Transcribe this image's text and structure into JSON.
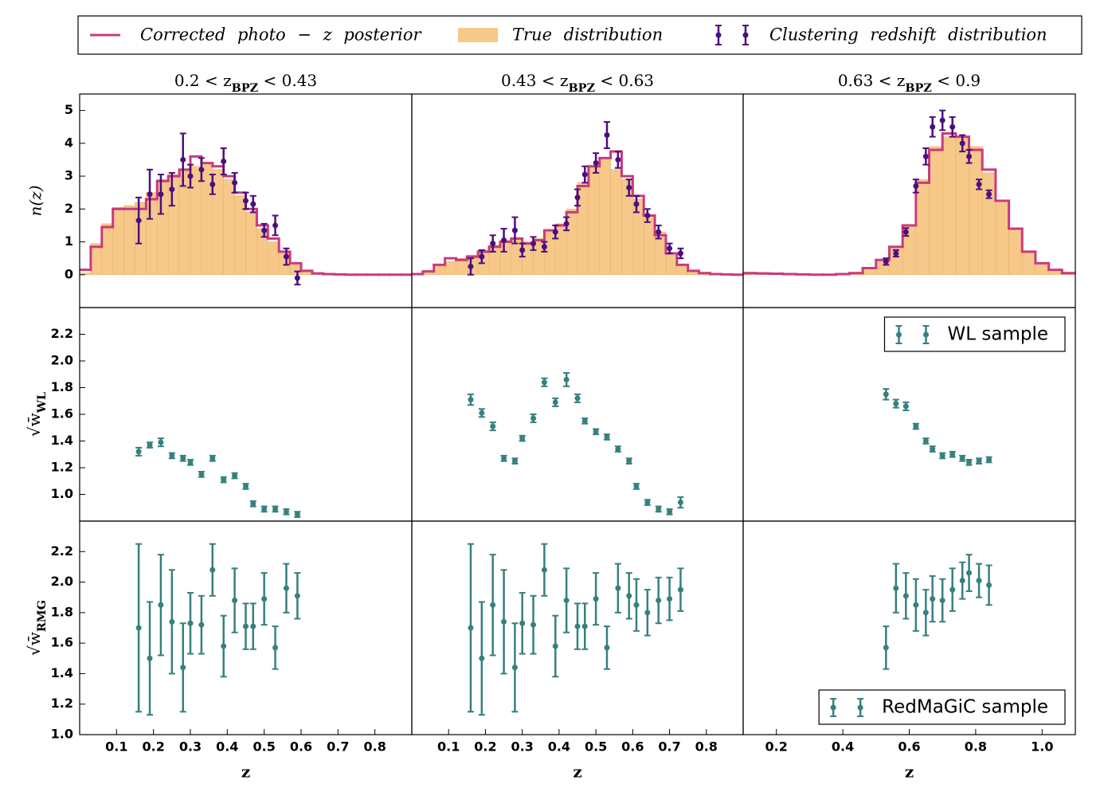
{
  "chart_data": [
    {
      "type": "nz",
      "title": {
        "main": "0.2 < z",
        "sub": "BPZ",
        "tail": " < 0.43"
      },
      "ylabel": "n(z)",
      "legend": "top",
      "xlim": [
        0,
        0.9
      ],
      "ylim": [
        -1,
        5.5
      ],
      "yticks": [
        0,
        1,
        2,
        3,
        4,
        5
      ],
      "series": [
        {
          "name": "Corrected photo − z posterior",
          "kind": "step",
          "color": "#c93a7c",
          "bins": [
            0,
            0.03,
            0.06,
            0.09,
            0.12,
            0.15,
            0.18,
            0.21,
            0.24,
            0.27,
            0.3,
            0.33,
            0.36,
            0.39,
            0.42,
            0.45,
            0.48,
            0.51,
            0.54,
            0.57,
            0.6,
            0.63,
            0.66,
            0.69,
            0.72,
            0.75,
            0.78,
            0.81,
            0.84,
            0.87,
            0.9
          ],
          "values": [
            0.15,
            0.85,
            1.45,
            2.0,
            2.0,
            2.0,
            2.3,
            2.85,
            3.0,
            3.2,
            3.6,
            3.4,
            3.3,
            3.0,
            2.5,
            2.0,
            1.5,
            1.1,
            0.7,
            0.35,
            0.12,
            0.04,
            0.02,
            0.01,
            0,
            0,
            0,
            0,
            0,
            0
          ]
        },
        {
          "name": "True distribution",
          "kind": "fill",
          "color": "#f6c88a",
          "bins": [
            0,
            0.03,
            0.06,
            0.09,
            0.12,
            0.15,
            0.18,
            0.21,
            0.24,
            0.27,
            0.3,
            0.33,
            0.36,
            0.39,
            0.42,
            0.45,
            0.48,
            0.51,
            0.54,
            0.57,
            0.6,
            0.63,
            0.66,
            0.69,
            0.72,
            0.75,
            0.78,
            0.81,
            0.84,
            0.87,
            0.9
          ],
          "values": [
            0.05,
            0.95,
            1.55,
            2.05,
            2.1,
            2.2,
            2.5,
            2.9,
            3.05,
            3.2,
            3.3,
            3.35,
            3.2,
            2.9,
            2.4,
            1.9,
            1.4,
            1.0,
            0.65,
            0.3,
            0.1,
            0.03,
            0.01,
            0,
            0,
            0,
            0,
            0,
            0,
            0
          ]
        },
        {
          "name": "Clustering redshift distribution",
          "kind": "errorbar",
          "color": "#4b0f7f",
          "x": [
            0.16,
            0.19,
            0.22,
            0.25,
            0.28,
            0.3,
            0.33,
            0.36,
            0.39,
            0.42,
            0.45,
            0.47,
            0.5,
            0.53,
            0.56,
            0.59
          ],
          "values": [
            1.65,
            2.45,
            2.45,
            2.6,
            3.5,
            3.0,
            3.2,
            2.75,
            3.45,
            2.8,
            2.25,
            2.15,
            1.35,
            1.5,
            0.55,
            -0.1
          ],
          "errors": [
            0.7,
            0.75,
            0.6,
            0.5,
            0.8,
            0.35,
            0.35,
            0.3,
            0.4,
            0.3,
            0.25,
            0.25,
            0.2,
            0.3,
            0.25,
            0.2
          ]
        }
      ]
    },
    {
      "type": "nz",
      "title": {
        "main": "0.43 < z",
        "sub": "BPZ",
        "tail": " < 0.63"
      },
      "xlim": [
        0,
        0.9
      ],
      "ylim": [
        -1,
        5.5
      ],
      "series": [
        {
          "kind": "step",
          "color": "#c93a7c",
          "bins": [
            0,
            0.03,
            0.06,
            0.09,
            0.12,
            0.15,
            0.18,
            0.21,
            0.24,
            0.27,
            0.3,
            0.33,
            0.36,
            0.39,
            0.42,
            0.45,
            0.48,
            0.51,
            0.54,
            0.57,
            0.6,
            0.63,
            0.66,
            0.69,
            0.72,
            0.75,
            0.78,
            0.81,
            0.84,
            0.87,
            0.9
          ],
          "values": [
            0.02,
            0.1,
            0.3,
            0.5,
            0.45,
            0.55,
            0.7,
            0.85,
            1.0,
            1.1,
            0.95,
            1.05,
            1.35,
            1.5,
            1.9,
            2.7,
            3.3,
            3.55,
            3.75,
            3.0,
            2.4,
            1.8,
            1.2,
            0.65,
            0.3,
            0.12,
            0.05,
            0.02,
            0.01,
            0
          ]
        },
        {
          "kind": "fill",
          "color": "#f6c88a",
          "bins": [
            0,
            0.03,
            0.06,
            0.09,
            0.12,
            0.15,
            0.18,
            0.21,
            0.24,
            0.27,
            0.3,
            0.33,
            0.36,
            0.39,
            0.42,
            0.45,
            0.48,
            0.51,
            0.54,
            0.57,
            0.6,
            0.63,
            0.66,
            0.69,
            0.72,
            0.75,
            0.78,
            0.81,
            0.84,
            0.87,
            0.9
          ],
          "values": [
            0.02,
            0.1,
            0.25,
            0.4,
            0.5,
            0.6,
            0.75,
            0.9,
            1.05,
            1.1,
            1.0,
            1.1,
            1.3,
            1.55,
            2.0,
            2.8,
            3.3,
            3.5,
            3.2,
            2.9,
            2.3,
            1.8,
            1.3,
            0.6,
            0.3,
            0.1,
            0.04,
            0.01,
            0,
            0
          ]
        },
        {
          "kind": "errorbar",
          "color": "#4b0f7f",
          "x": [
            0.16,
            0.19,
            0.22,
            0.25,
            0.28,
            0.3,
            0.33,
            0.36,
            0.39,
            0.42,
            0.45,
            0.47,
            0.5,
            0.53,
            0.56,
            0.59,
            0.61,
            0.64,
            0.67,
            0.7,
            0.73
          ],
          "values": [
            0.25,
            0.55,
            0.95,
            1.05,
            1.35,
            0.75,
            0.95,
            0.85,
            1.3,
            1.55,
            2.35,
            3.05,
            3.4,
            4.25,
            3.5,
            2.65,
            2.15,
            1.8,
            1.3,
            0.8,
            0.65
          ],
          "errors": [
            0.25,
            0.2,
            0.25,
            0.35,
            0.4,
            0.2,
            0.2,
            0.15,
            0.2,
            0.2,
            0.25,
            0.25,
            0.3,
            0.4,
            0.25,
            0.25,
            0.25,
            0.2,
            0.2,
            0.15,
            0.15
          ]
        }
      ]
    },
    {
      "type": "nz",
      "title": {
        "main": "0.63 < z",
        "sub": "BPZ",
        "tail": " < 0.9"
      },
      "xlim": [
        0.1,
        1.1
      ],
      "ylim": [
        -1,
        5.5
      ],
      "series": [
        {
          "kind": "step",
          "color": "#c93a7c",
          "bins": [
            0.1,
            0.14,
            0.18,
            0.22,
            0.26,
            0.3,
            0.34,
            0.38,
            0.42,
            0.46,
            0.5,
            0.54,
            0.58,
            0.62,
            0.66,
            0.7,
            0.74,
            0.78,
            0.82,
            0.86,
            0.9,
            0.94,
            0.98,
            1.02,
            1.06,
            1.1
          ],
          "values": [
            0.05,
            0.04,
            0.03,
            0.02,
            0.01,
            0,
            0,
            0.02,
            0.05,
            0.2,
            0.45,
            0.85,
            1.5,
            2.8,
            3.8,
            4.3,
            4.2,
            3.8,
            3.2,
            2.25,
            1.4,
            0.7,
            0.35,
            0.15,
            0.05
          ]
        },
        {
          "kind": "fill",
          "color": "#f6c88a",
          "bins": [
            0.1,
            0.14,
            0.18,
            0.22,
            0.26,
            0.3,
            0.34,
            0.38,
            0.42,
            0.46,
            0.5,
            0.54,
            0.58,
            0.62,
            0.66,
            0.7,
            0.74,
            0.78,
            0.82,
            0.86,
            0.9,
            0.94,
            0.98,
            1.02,
            1.06,
            1.1
          ],
          "values": [
            0.02,
            0.02,
            0.01,
            0.01,
            0,
            0,
            0,
            0.01,
            0.03,
            0.15,
            0.4,
            0.8,
            1.5,
            2.9,
            3.9,
            4.2,
            4.2,
            3.9,
            3.1,
            2.2,
            1.4,
            0.7,
            0.3,
            0.1,
            0.03
          ]
        },
        {
          "kind": "errorbar",
          "color": "#4b0f7f",
          "x": [
            0.53,
            0.56,
            0.59,
            0.62,
            0.65,
            0.67,
            0.7,
            0.73,
            0.76,
            0.78,
            0.81,
            0.84
          ],
          "values": [
            0.4,
            0.65,
            1.3,
            2.7,
            3.6,
            4.5,
            4.7,
            4.5,
            4.0,
            3.6,
            2.75,
            2.45
          ],
          "errors": [
            0.1,
            0.1,
            0.12,
            0.2,
            0.25,
            0.3,
            0.3,
            0.3,
            0.25,
            0.2,
            0.15,
            0.12
          ]
        }
      ]
    },
    {
      "type": "errorbar",
      "ylabel": {
        "main": "√w̄",
        "sub": "WL"
      },
      "xlim": [
        0,
        0.9
      ],
      "ylim": [
        0.8,
        2.4
      ],
      "yticks": [
        {
          "value": 1,
          "label": "1.0"
        },
        1.2,
        1.4,
        1.6,
        1.8,
        {
          "value": 2,
          "label": "2.0"
        },
        2.2
      ],
      "series": [
        {
          "kind": "errorbar",
          "color": "#36807e",
          "x": [
            0.16,
            0.19,
            0.22,
            0.25,
            0.28,
            0.3,
            0.33,
            0.36,
            0.39,
            0.42,
            0.45,
            0.47,
            0.5,
            0.53,
            0.56,
            0.59
          ],
          "values": [
            1.32,
            1.37,
            1.39,
            1.29,
            1.27,
            1.24,
            1.15,
            1.27,
            1.11,
            1.14,
            1.06,
            0.93,
            0.89,
            0.89,
            0.87,
            0.85
          ],
          "errors": [
            0.03,
            0.02,
            0.03,
            0.02,
            0.02,
            0.02,
            0.02,
            0.02,
            0.02,
            0.02,
            0.02,
            0.02,
            0.02,
            0.02,
            0.02,
            0.02
          ]
        }
      ]
    },
    {
      "type": "errorbar",
      "xlim": [
        0,
        0.9
      ],
      "ylim": [
        0.8,
        2.4
      ],
      "series": [
        {
          "kind": "errorbar",
          "color": "#36807e",
          "x": [
            0.16,
            0.19,
            0.22,
            0.25,
            0.28,
            0.3,
            0.33,
            0.36,
            0.39,
            0.42,
            0.45,
            0.47,
            0.5,
            0.53,
            0.56,
            0.59,
            0.61,
            0.64,
            0.67,
            0.7,
            0.73
          ],
          "values": [
            1.71,
            1.61,
            1.51,
            1.27,
            1.25,
            1.42,
            1.57,
            1.84,
            1.69,
            1.86,
            1.72,
            1.55,
            1.47,
            1.43,
            1.34,
            1.25,
            1.06,
            0.94,
            0.89,
            0.87,
            0.94
          ],
          "errors": [
            0.04,
            0.03,
            0.03,
            0.02,
            0.02,
            0.02,
            0.03,
            0.03,
            0.03,
            0.05,
            0.03,
            0.02,
            0.02,
            0.02,
            0.02,
            0.02,
            0.02,
            0.02,
            0.02,
            0.02,
            0.04
          ]
        }
      ]
    },
    {
      "type": "errorbar",
      "legend": "upper right",
      "xlim": [
        0.1,
        1.1
      ],
      "ylim": [
        0.8,
        2.4
      ],
      "series": [
        {
          "name": "WL sample",
          "kind": "errorbar",
          "color": "#36807e",
          "x": [
            0.53,
            0.56,
            0.59,
            0.62,
            0.65,
            0.67,
            0.7,
            0.73,
            0.76,
            0.78,
            0.81,
            0.84
          ],
          "values": [
            1.75,
            1.68,
            1.66,
            1.51,
            1.4,
            1.34,
            1.29,
            1.3,
            1.27,
            1.24,
            1.25,
            1.26
          ],
          "errors": [
            0.04,
            0.03,
            0.03,
            0.02,
            0.02,
            0.02,
            0.02,
            0.02,
            0.02,
            0.02,
            0.02,
            0.02
          ]
        }
      ]
    },
    {
      "type": "errorbar",
      "ylabel": {
        "main": "√w̄",
        "sub": "RMG"
      },
      "xlim": [
        0,
        0.9
      ],
      "ylim": [
        1,
        2.4
      ],
      "yticks": [
        {
          "value": 1,
          "label": "1.0"
        },
        1.2,
        1.4,
        1.6,
        1.8,
        {
          "value": 2,
          "label": "2.0"
        },
        2.2
      ],
      "xticks": [
        0.1,
        0.2,
        0.3,
        0.4,
        0.5,
        0.6,
        0.7,
        0.8
      ],
      "xlabel": "z",
      "series": [
        {
          "kind": "errorbar",
          "color": "#36807e",
          "x": [
            0.16,
            0.19,
            0.22,
            0.25,
            0.28,
            0.3,
            0.33,
            0.36,
            0.39,
            0.42,
            0.45,
            0.47,
            0.5,
            0.53,
            0.56,
            0.59
          ],
          "values": [
            1.7,
            1.5,
            1.85,
            1.74,
            1.44,
            1.73,
            1.72,
            2.08,
            1.58,
            1.88,
            1.71,
            1.71,
            1.89,
            1.57,
            1.96,
            1.91
          ],
          "errors": [
            0.55,
            0.37,
            0.33,
            0.34,
            0.29,
            0.2,
            0.19,
            0.17,
            0.2,
            0.21,
            0.15,
            0.15,
            0.17,
            0.14,
            0.16,
            0.15
          ]
        }
      ]
    },
    {
      "type": "errorbar",
      "xlim": [
        0,
        0.9
      ],
      "ylim": [
        1,
        2.4
      ],
      "xticks": [
        0.1,
        0.2,
        0.3,
        0.4,
        0.5,
        0.6,
        0.7,
        0.8
      ],
      "xlabel": "z",
      "series": [
        {
          "kind": "errorbar",
          "color": "#36807e",
          "x": [
            0.16,
            0.19,
            0.22,
            0.25,
            0.28,
            0.3,
            0.33,
            0.36,
            0.39,
            0.42,
            0.45,
            0.47,
            0.5,
            0.53,
            0.56,
            0.59,
            0.61,
            0.64,
            0.67,
            0.7,
            0.73
          ],
          "values": [
            1.7,
            1.5,
            1.85,
            1.74,
            1.44,
            1.73,
            1.72,
            2.08,
            1.58,
            1.88,
            1.71,
            1.71,
            1.89,
            1.57,
            1.96,
            1.91,
            1.85,
            1.8,
            1.88,
            1.89,
            1.95
          ],
          "errors": [
            0.55,
            0.37,
            0.33,
            0.34,
            0.29,
            0.2,
            0.19,
            0.17,
            0.2,
            0.21,
            0.15,
            0.15,
            0.17,
            0.14,
            0.16,
            0.15,
            0.17,
            0.15,
            0.15,
            0.14,
            0.14
          ]
        }
      ]
    },
    {
      "type": "errorbar",
      "legend": "lower right",
      "xlim": [
        0.1,
        1.1
      ],
      "ylim": [
        1,
        2.4
      ],
      "xticks": [
        0.2,
        0.4,
        0.6,
        0.8,
        {
          "value": 1,
          "label": "1.0"
        }
      ],
      "xlabel": "z",
      "series": [
        {
          "name": "RedMaGiC sample",
          "kind": "errorbar",
          "color": "#36807e",
          "x": [
            0.53,
            0.56,
            0.59,
            0.62,
            0.65,
            0.67,
            0.7,
            0.73,
            0.76,
            0.78,
            0.81,
            0.84
          ],
          "values": [
            1.57,
            1.96,
            1.91,
            1.85,
            1.8,
            1.89,
            1.88,
            1.95,
            2.01,
            2.06,
            2.01,
            1.98
          ],
          "errors": [
            0.14,
            0.16,
            0.15,
            0.17,
            0.15,
            0.15,
            0.14,
            0.14,
            0.12,
            0.12,
            0.11,
            0.13
          ]
        }
      ]
    }
  ]
}
